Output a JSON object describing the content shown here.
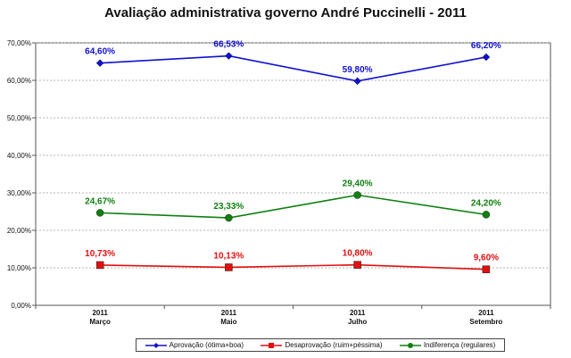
{
  "chart_data": {
    "type": "line",
    "title": "Avaliação administrativa governo André Puccinelli - 2011",
    "categories": [
      "2011\nMarço",
      "2011\nMaio",
      "2011\nJulho",
      "2011\nSetembro"
    ],
    "ylim": [
      0,
      70
    ],
    "yticks": [
      "0,00%",
      "10,00%",
      "20,00%",
      "30,00%",
      "40,00%",
      "50,00%",
      "60,00%",
      "70,00%"
    ],
    "grid": true,
    "legend": "bottom",
    "series": [
      {
        "name": "Aprovação (ótima+boa)",
        "values": [
          64.6,
          66.53,
          59.8,
          66.2
        ],
        "labels": [
          "64,60%",
          "66,53%",
          "59,80%",
          "66,20%"
        ],
        "color": "#1010d0",
        "marker": "diamond"
      },
      {
        "name": "Desaprovação (ruim+péssima)",
        "values": [
          10.73,
          10.13,
          10.8,
          9.6
        ],
        "labels": [
          "10,73%",
          "10,13%",
          "10,80%",
          "9,60%"
        ],
        "color": "#e01010",
        "marker": "square"
      },
      {
        "name": "Indiferença (regulares)",
        "values": [
          24.67,
          23.33,
          29.4,
          24.2
        ],
        "labels": [
          "24,67%",
          "23,33%",
          "29,40%",
          "24,20%"
        ],
        "color": "#108010",
        "marker": "circle"
      }
    ]
  }
}
